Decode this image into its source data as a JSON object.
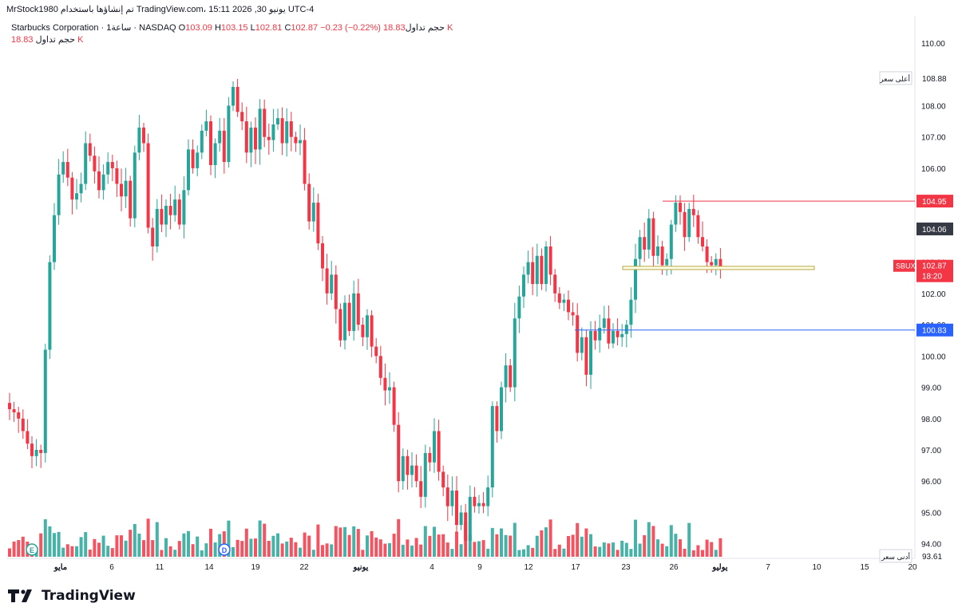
{
  "caption": "MrStock1980 تم إنشاؤها باستخدام TradingView.com، يونيو 30, 2026 15:11 UTC-4",
  "legend": {
    "title": "Starbucks Corporation · 1ساعة · NASDAQ",
    "open_label": "O",
    "open": "103.09",
    "high_label": "H",
    "high": "103.15",
    "low_label": "L",
    "low": "102.81",
    "close_label": "C",
    "close": "102.87",
    "change": "−0.23 (−0.22%)",
    "volume_label": "حجم تداول",
    "volume": "18.83 K"
  },
  "footer": {
    "brand": "TradingView"
  },
  "colors": {
    "up": "#26a69a",
    "down": "#f23645",
    "accent_blue": "#2962ff",
    "grid_text": "#131722"
  },
  "chart_data": {
    "type": "candlestick",
    "symbol": "SBUX",
    "timeframe": "1h",
    "ylim": [
      93.61,
      110.3
    ],
    "y_ticks": [
      "110.00",
      "109.00",
      "108.00",
      "107.00",
      "106.00",
      "105.00",
      "104.00",
      "103.00",
      "102.00",
      "101.00",
      "100.00",
      "99.00",
      "98.00",
      "97.00",
      "96.00",
      "95.00",
      "94.00"
    ],
    "x_ticks": [
      "مايو",
      "6",
      "11",
      "14",
      "19",
      "22",
      "يونيو",
      "4",
      "9",
      "12",
      "17",
      "23",
      "26",
      "يوليو",
      "7",
      "10",
      "15",
      "20"
    ],
    "price_labels": [
      {
        "text": "108.88",
        "tag": "أعلى سعر",
        "value": 108.88,
        "style": "plain"
      },
      {
        "text": "104.95",
        "value": 104.95,
        "style": "red"
      },
      {
        "text": "104.06",
        "value": 104.06,
        "style": "dark"
      },
      {
        "text": "102.87",
        "tag": "SBUX",
        "sub": "18:20",
        "value": 102.87,
        "style": "red"
      },
      {
        "text": "100.83",
        "value": 100.83,
        "style": "blue"
      },
      {
        "text": "93.61",
        "tag": "أدنى سعر",
        "value": 93.61,
        "style": "plain"
      }
    ],
    "lines": [
      {
        "type": "horizontal",
        "value": 104.95,
        "color": "#f23645"
      },
      {
        "type": "horizontal",
        "value": 100.83,
        "color": "#2962ff"
      }
    ],
    "zones": [
      {
        "type": "rectangle",
        "from": 102.76,
        "to": 102.84,
        "color": "#b5a642"
      }
    ],
    "markers": [
      "E",
      "D"
    ],
    "closes": [
      98.3,
      98.2,
      98.0,
      97.6,
      97.2,
      96.8,
      97.0,
      96.9,
      100.2,
      103.0,
      104.5,
      105.8,
      106.2,
      105.7,
      105.0,
      105.2,
      105.5,
      106.8,
      106.4,
      105.9,
      105.3,
      105.8,
      106.2,
      106.0,
      105.5,
      105.1,
      105.6,
      104.4,
      106.5,
      107.3,
      106.8,
      104.1,
      103.5,
      104.7,
      104.2,
      104.8,
      104.5,
      105.0,
      104.2,
      105.3,
      106.6,
      106.0,
      106.5,
      107.2,
      107.5,
      106.1,
      106.8,
      107.2,
      106.2,
      108.0,
      108.6,
      107.8,
      107.5,
      106.5,
      107.3,
      106.6,
      107.9,
      107.0,
      106.9,
      107.4,
      107.6,
      106.8,
      107.5,
      107.0,
      106.8,
      106.9,
      105.5,
      104.3,
      104.9,
      103.6,
      102.8,
      102.0,
      102.6,
      101.5,
      100.5,
      101.7,
      100.8,
      102.0,
      101.0,
      100.6,
      101.3,
      100.3,
      100.0,
      99.3,
      98.9,
      99.0,
      97.8,
      96.0,
      96.8,
      96.2,
      96.5,
      96.0,
      95.5,
      96.9,
      96.6,
      97.6,
      96.3,
      95.8,
      95.2,
      95.7,
      94.6,
      95.0,
      94.1,
      95.5,
      95.2,
      95.3,
      95.2,
      95.8,
      98.4,
      97.6,
      99.0,
      99.7,
      99.0,
      101.2,
      101.9,
      102.6,
      103.0,
      102.3,
      103.2,
      102.3,
      103.5,
      102.6,
      102.0,
      101.7,
      101.8,
      101.4,
      101.3,
      100.1,
      100.6,
      99.4,
      100.8,
      100.5,
      100.9,
      101.2,
      100.4,
      100.8,
      100.6,
      100.7,
      101.0,
      101.8,
      103.1,
      103.8,
      103.4,
      104.4,
      103.2,
      103.5,
      102.9,
      103.1,
      104.2,
      104.9,
      104.6,
      103.8,
      104.7,
      104.5,
      103.8,
      103.5,
      103.0,
      102.9,
      103.1,
      102.87
    ]
  }
}
